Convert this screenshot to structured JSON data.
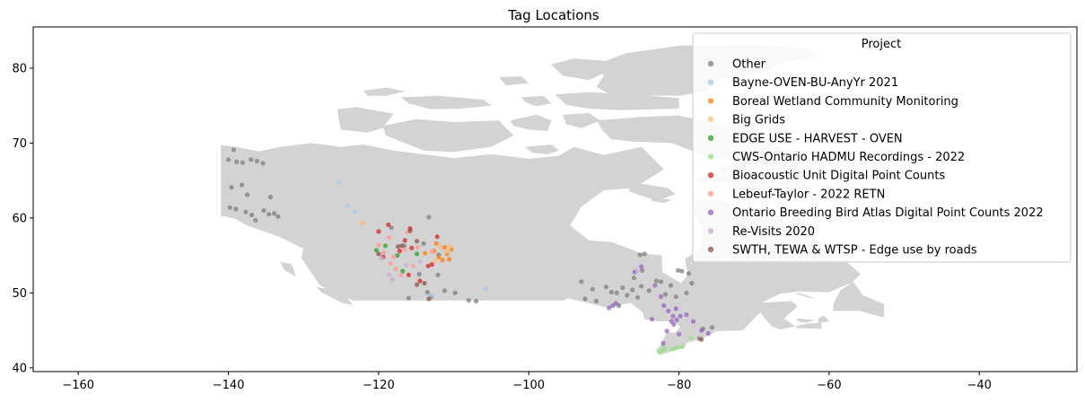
{
  "chart_data": {
    "type": "scatter",
    "title": "Tag Locations",
    "xlabel": "",
    "ylabel": "",
    "xlim": [
      -166,
      -27
    ],
    "ylim": [
      39.5,
      85.5
    ],
    "xticks": [
      -160,
      -140,
      -120,
      -100,
      -80,
      -60,
      -40
    ],
    "yticks": [
      40,
      50,
      60,
      70,
      80
    ],
    "grid": false,
    "background_map": "Canada",
    "map_color": "#d3d3d3",
    "legend": {
      "title": "Project",
      "placement": "upper right"
    },
    "series": [
      {
        "name": "Other",
        "color": "#7f7f7f",
        "points": [
          [
            -140.0,
            67.8
          ],
          [
            -139.3,
            69.1
          ],
          [
            -138.9,
            67.5
          ],
          [
            -138.1,
            67.4
          ],
          [
            -137.0,
            67.8
          ],
          [
            -136.2,
            67.6
          ],
          [
            -135.4,
            67.3
          ],
          [
            -139.6,
            64.1
          ],
          [
            -138.2,
            64.4
          ],
          [
            -137.5,
            63.1
          ],
          [
            -134.4,
            62.8
          ],
          [
            -139.8,
            61.4
          ],
          [
            -139.0,
            61.2
          ],
          [
            -137.7,
            60.8
          ],
          [
            -136.9,
            60.4
          ],
          [
            -136.4,
            59.7
          ],
          [
            -135.3,
            61.0
          ],
          [
            -134.6,
            60.5
          ],
          [
            -133.9,
            60.6
          ],
          [
            -133.4,
            60.2
          ],
          [
            -118.3,
            58.7
          ],
          [
            -116.6,
            56.3
          ],
          [
            -114.0,
            56.6
          ],
          [
            -113.3,
            60.1
          ],
          [
            -112.0,
            55.1
          ],
          [
            -114.6,
            52.5
          ],
          [
            -113.5,
            50.1
          ],
          [
            -112.1,
            52.4
          ],
          [
            -111.2,
            50.3
          ],
          [
            -109.8,
            50.0
          ],
          [
            -108.0,
            49.0
          ],
          [
            -107.0,
            48.9
          ],
          [
            -113.0,
            49.5
          ],
          [
            -116.0,
            49.3
          ],
          [
            -93.0,
            51.5
          ],
          [
            -91.5,
            50.5
          ],
          [
            -89.7,
            50.8
          ],
          [
            -89.0,
            50.1
          ],
          [
            -88.3,
            50.0
          ],
          [
            -87.5,
            50.7
          ],
          [
            -86.9,
            49.7
          ],
          [
            -86.2,
            50.4
          ],
          [
            -85.5,
            49.4
          ],
          [
            -85.0,
            50.9
          ],
          [
            -84.0,
            50.3
          ],
          [
            -86.0,
            52.0
          ],
          [
            -84.9,
            53.0
          ],
          [
            -85.2,
            55.1
          ],
          [
            -84.6,
            55.2
          ],
          [
            -83.0,
            51.6
          ],
          [
            -82.4,
            51.5
          ],
          [
            -81.8,
            49.8
          ],
          [
            -81.1,
            51.0
          ],
          [
            -80.1,
            53.0
          ],
          [
            -79.6,
            52.9
          ],
          [
            -78.7,
            52.6
          ],
          [
            -78.3,
            51.3
          ],
          [
            -79.0,
            50.0
          ],
          [
            -80.4,
            49.5
          ],
          [
            -91.0,
            48.9
          ],
          [
            -92.5,
            49.2
          ],
          [
            -88.0,
            48.3
          ],
          [
            -76.8,
            45.2
          ],
          [
            -75.6,
            45.4
          ],
          [
            -77.3,
            43.9
          ]
        ]
      },
      {
        "name": "Bayne-OVEN-BU-AnyYr 2021",
        "color": "#aec7e8",
        "points": [
          [
            -125.3,
            64.8
          ],
          [
            -124.1,
            61.6
          ],
          [
            -123.2,
            60.9
          ],
          [
            -105.7,
            50.6
          ],
          [
            -113.0,
            49.7
          ]
        ]
      },
      {
        "name": "Boreal Wetland Community Monitoring",
        "color": "#ff7f0e",
        "points": [
          [
            -112.6,
            55.6
          ],
          [
            -112.0,
            54.8
          ],
          [
            -111.5,
            54.4
          ],
          [
            -110.9,
            55.2
          ],
          [
            -110.6,
            54.5
          ],
          [
            -111.2,
            56.1
          ],
          [
            -112.3,
            56.6
          ],
          [
            -113.8,
            55.3
          ],
          [
            -110.3,
            55.8
          ]
        ]
      },
      {
        "name": "Big Grids",
        "color": "#ffbb78",
        "points": [
          [
            -122.1,
            59.3
          ],
          [
            -111.8,
            56.1
          ],
          [
            -111.0,
            55.5
          ],
          [
            -110.5,
            56.2
          ],
          [
            -112.5,
            54.3
          ]
        ]
      },
      {
        "name": "EDGE USE - HARVEST - OVEN",
        "color": "#2ca02c",
        "points": [
          [
            -120.3,
            55.7
          ],
          [
            -116.8,
            52.9
          ],
          [
            -114.9,
            55.2
          ],
          [
            -117.5,
            55.0
          ],
          [
            -119.1,
            56.3
          ]
        ]
      },
      {
        "name": "CWS-Ontario HADMU Recordings - 2022",
        "color": "#98df8a",
        "points": [
          [
            -82.6,
            42.1
          ],
          [
            -82.3,
            42.3
          ],
          [
            -81.9,
            42.5
          ],
          [
            -80.6,
            42.6
          ],
          [
            -80.2,
            42.7
          ],
          [
            -79.6,
            42.8
          ],
          [
            -78.4,
            44.0
          ],
          [
            -80.9,
            42.5
          ],
          [
            -82.0,
            42.9
          ]
        ]
      },
      {
        "name": "Bioacoustic Unit Digital Point Counts",
        "color": "#d62728",
        "points": [
          [
            -120.0,
            58.2
          ],
          [
            -118.7,
            59.1
          ],
          [
            -116.5,
            57.0
          ],
          [
            -115.8,
            58.6
          ],
          [
            -112.2,
            57.5
          ],
          [
            -113.4,
            53.6
          ],
          [
            -114.5,
            51.6
          ],
          [
            -116.0,
            52.4
          ],
          [
            -119.4,
            54.8
          ],
          [
            -117.2,
            55.6
          ],
          [
            -112.9,
            53.8
          ],
          [
            -115.6,
            56.0
          ]
        ]
      },
      {
        "name": "Lebeuf-Taylor - 2022 RETN",
        "color": "#ff9896",
        "points": [
          [
            -120.0,
            56.4
          ],
          [
            -119.3,
            55.4
          ],
          [
            -118.4,
            53.9
          ],
          [
            -117.7,
            53.2
          ],
          [
            -117.0,
            52.4
          ],
          [
            -116.5,
            55.8
          ],
          [
            -118.6,
            57.4
          ],
          [
            -115.4,
            53.6
          ],
          [
            -114.8,
            56.1
          ],
          [
            -116.2,
            58.1
          ],
          [
            -112.9,
            55.5
          ],
          [
            -118.0,
            54.8
          ]
        ]
      },
      {
        "name": "Ontario Breeding Bird Atlas Digital Point Counts 2022",
        "color": "#9467bd",
        "points": [
          [
            -85.9,
            52.8
          ],
          [
            -85.0,
            53.5
          ],
          [
            -83.2,
            51.0
          ],
          [
            -82.4,
            49.5
          ],
          [
            -82.0,
            48.3
          ],
          [
            -81.4,
            47.6
          ],
          [
            -80.8,
            46.9
          ],
          [
            -80.3,
            46.4
          ],
          [
            -79.8,
            46.9
          ],
          [
            -79.0,
            47.1
          ],
          [
            -78.1,
            46.2
          ],
          [
            -80.7,
            45.8
          ],
          [
            -81.6,
            44.9
          ],
          [
            -80.0,
            44.5
          ],
          [
            -82.1,
            43.3
          ],
          [
            -77.0,
            45.0
          ],
          [
            -76.1,
            44.6
          ],
          [
            -88.8,
            48.3
          ],
          [
            -88.4,
            48.6
          ],
          [
            -89.3,
            48.0
          ],
          [
            -83.6,
            46.5
          ],
          [
            -80.4,
            47.9
          ],
          [
            -81.0,
            46.2
          ]
        ]
      },
      {
        "name": "Re-Visits 2020",
        "color": "#c5b0d5",
        "points": [
          [
            -118.6,
            52.4
          ],
          [
            -116.3,
            53.7
          ],
          [
            -119.6,
            54.6
          ],
          [
            -114.5,
            54.2
          ],
          [
            -85.5,
            53.0
          ],
          [
            -118.2,
            51.8
          ]
        ]
      },
      {
        "name": "SWTH, TEWA & WTSP - Edge use by roads",
        "color": "#8c564b",
        "points": [
          [
            -115.8,
            58.3
          ],
          [
            -114.9,
            56.9
          ],
          [
            -116.9,
            56.3
          ],
          [
            -113.9,
            51.3
          ],
          [
            -114.9,
            51.1
          ],
          [
            -113.3,
            49.2
          ],
          [
            -120.0,
            55.2
          ],
          [
            -117.4,
            56.2
          ],
          [
            -77.0,
            43.8
          ]
        ]
      }
    ]
  }
}
